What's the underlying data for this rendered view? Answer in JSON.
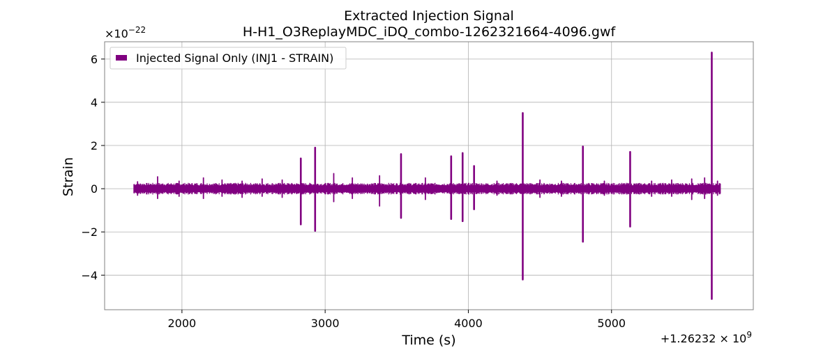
{
  "chart_data": {
    "type": "line",
    "title_line1": "Extracted Injection Signal",
    "title_line2": "H-H1_O3ReplayMDC_iDQ_combo-1262321664-4096.gwf",
    "xlabel": "Time (s)",
    "ylabel": "Strain",
    "x_offset_label": "+1.26232 × 10",
    "x_offset_exp": "9",
    "y_scale_label": "×10",
    "y_scale_exp": "−22",
    "xlim": [
      1460,
      5990
    ],
    "ylim": [
      -5.6,
      6.8
    ],
    "x_ticks": [
      2000,
      3000,
      4000,
      5000
    ],
    "x_tick_labels": [
      "2000",
      "3000",
      "4000",
      "5000"
    ],
    "y_ticks": [
      -4,
      -2,
      0,
      2,
      4,
      6
    ],
    "y_tick_labels": [
      "−4",
      "−2",
      "0",
      "2",
      "4",
      "6"
    ],
    "grid": true,
    "legend_position": "top-left",
    "colors": {
      "series": "#800080",
      "grid": "#b0b0b0",
      "axes": "#808080"
    },
    "x_range": [
      1664,
      5760
    ],
    "background_amplitude": 0.15,
    "series": [
      {
        "name": "Injected Signal Only (INJ1 - STRAIN)",
        "spikes": [
          {
            "x": 1690,
            "pos": 0.32,
            "neg": -0.3
          },
          {
            "x": 1830,
            "pos": 0.55,
            "neg": -0.45
          },
          {
            "x": 1980,
            "pos": 0.35,
            "neg": -0.35
          },
          {
            "x": 2150,
            "pos": 0.5,
            "neg": -0.45
          },
          {
            "x": 2280,
            "pos": 0.4,
            "neg": -0.35
          },
          {
            "x": 2420,
            "pos": 0.35,
            "neg": -0.4
          },
          {
            "x": 2560,
            "pos": 0.45,
            "neg": -0.35
          },
          {
            "x": 2700,
            "pos": 0.4,
            "neg": -0.4
          },
          {
            "x": 2830,
            "pos": 1.4,
            "neg": -1.65
          },
          {
            "x": 2930,
            "pos": 1.9,
            "neg": -1.95
          },
          {
            "x": 3060,
            "pos": 0.7,
            "neg": -0.6
          },
          {
            "x": 3190,
            "pos": 0.5,
            "neg": -0.45
          },
          {
            "x": 3380,
            "pos": 0.6,
            "neg": -0.8
          },
          {
            "x": 3530,
            "pos": 1.6,
            "neg": -1.35
          },
          {
            "x": 3700,
            "pos": 0.5,
            "neg": -0.5
          },
          {
            "x": 3880,
            "pos": 1.5,
            "neg": -1.4
          },
          {
            "x": 3960,
            "pos": 1.65,
            "neg": -1.5
          },
          {
            "x": 4040,
            "pos": 1.05,
            "neg": -0.95
          },
          {
            "x": 4200,
            "pos": 0.35,
            "neg": -0.3
          },
          {
            "x": 4380,
            "pos": 3.5,
            "neg": -4.2
          },
          {
            "x": 4500,
            "pos": 0.4,
            "neg": -0.4
          },
          {
            "x": 4650,
            "pos": 0.35,
            "neg": -0.35
          },
          {
            "x": 4800,
            "pos": 1.95,
            "neg": -2.45
          },
          {
            "x": 4950,
            "pos": 0.35,
            "neg": -0.3
          },
          {
            "x": 5130,
            "pos": 1.7,
            "neg": -1.75
          },
          {
            "x": 5280,
            "pos": 0.35,
            "neg": -0.35
          },
          {
            "x": 5420,
            "pos": 0.4,
            "neg": -0.35
          },
          {
            "x": 5560,
            "pos": 0.45,
            "neg": -0.5
          },
          {
            "x": 5650,
            "pos": 0.5,
            "neg": -0.45
          },
          {
            "x": 5700,
            "pos": 6.3,
            "neg": -5.1
          },
          {
            "x": 5740,
            "pos": 0.35,
            "neg": -0.3
          }
        ]
      }
    ]
  }
}
